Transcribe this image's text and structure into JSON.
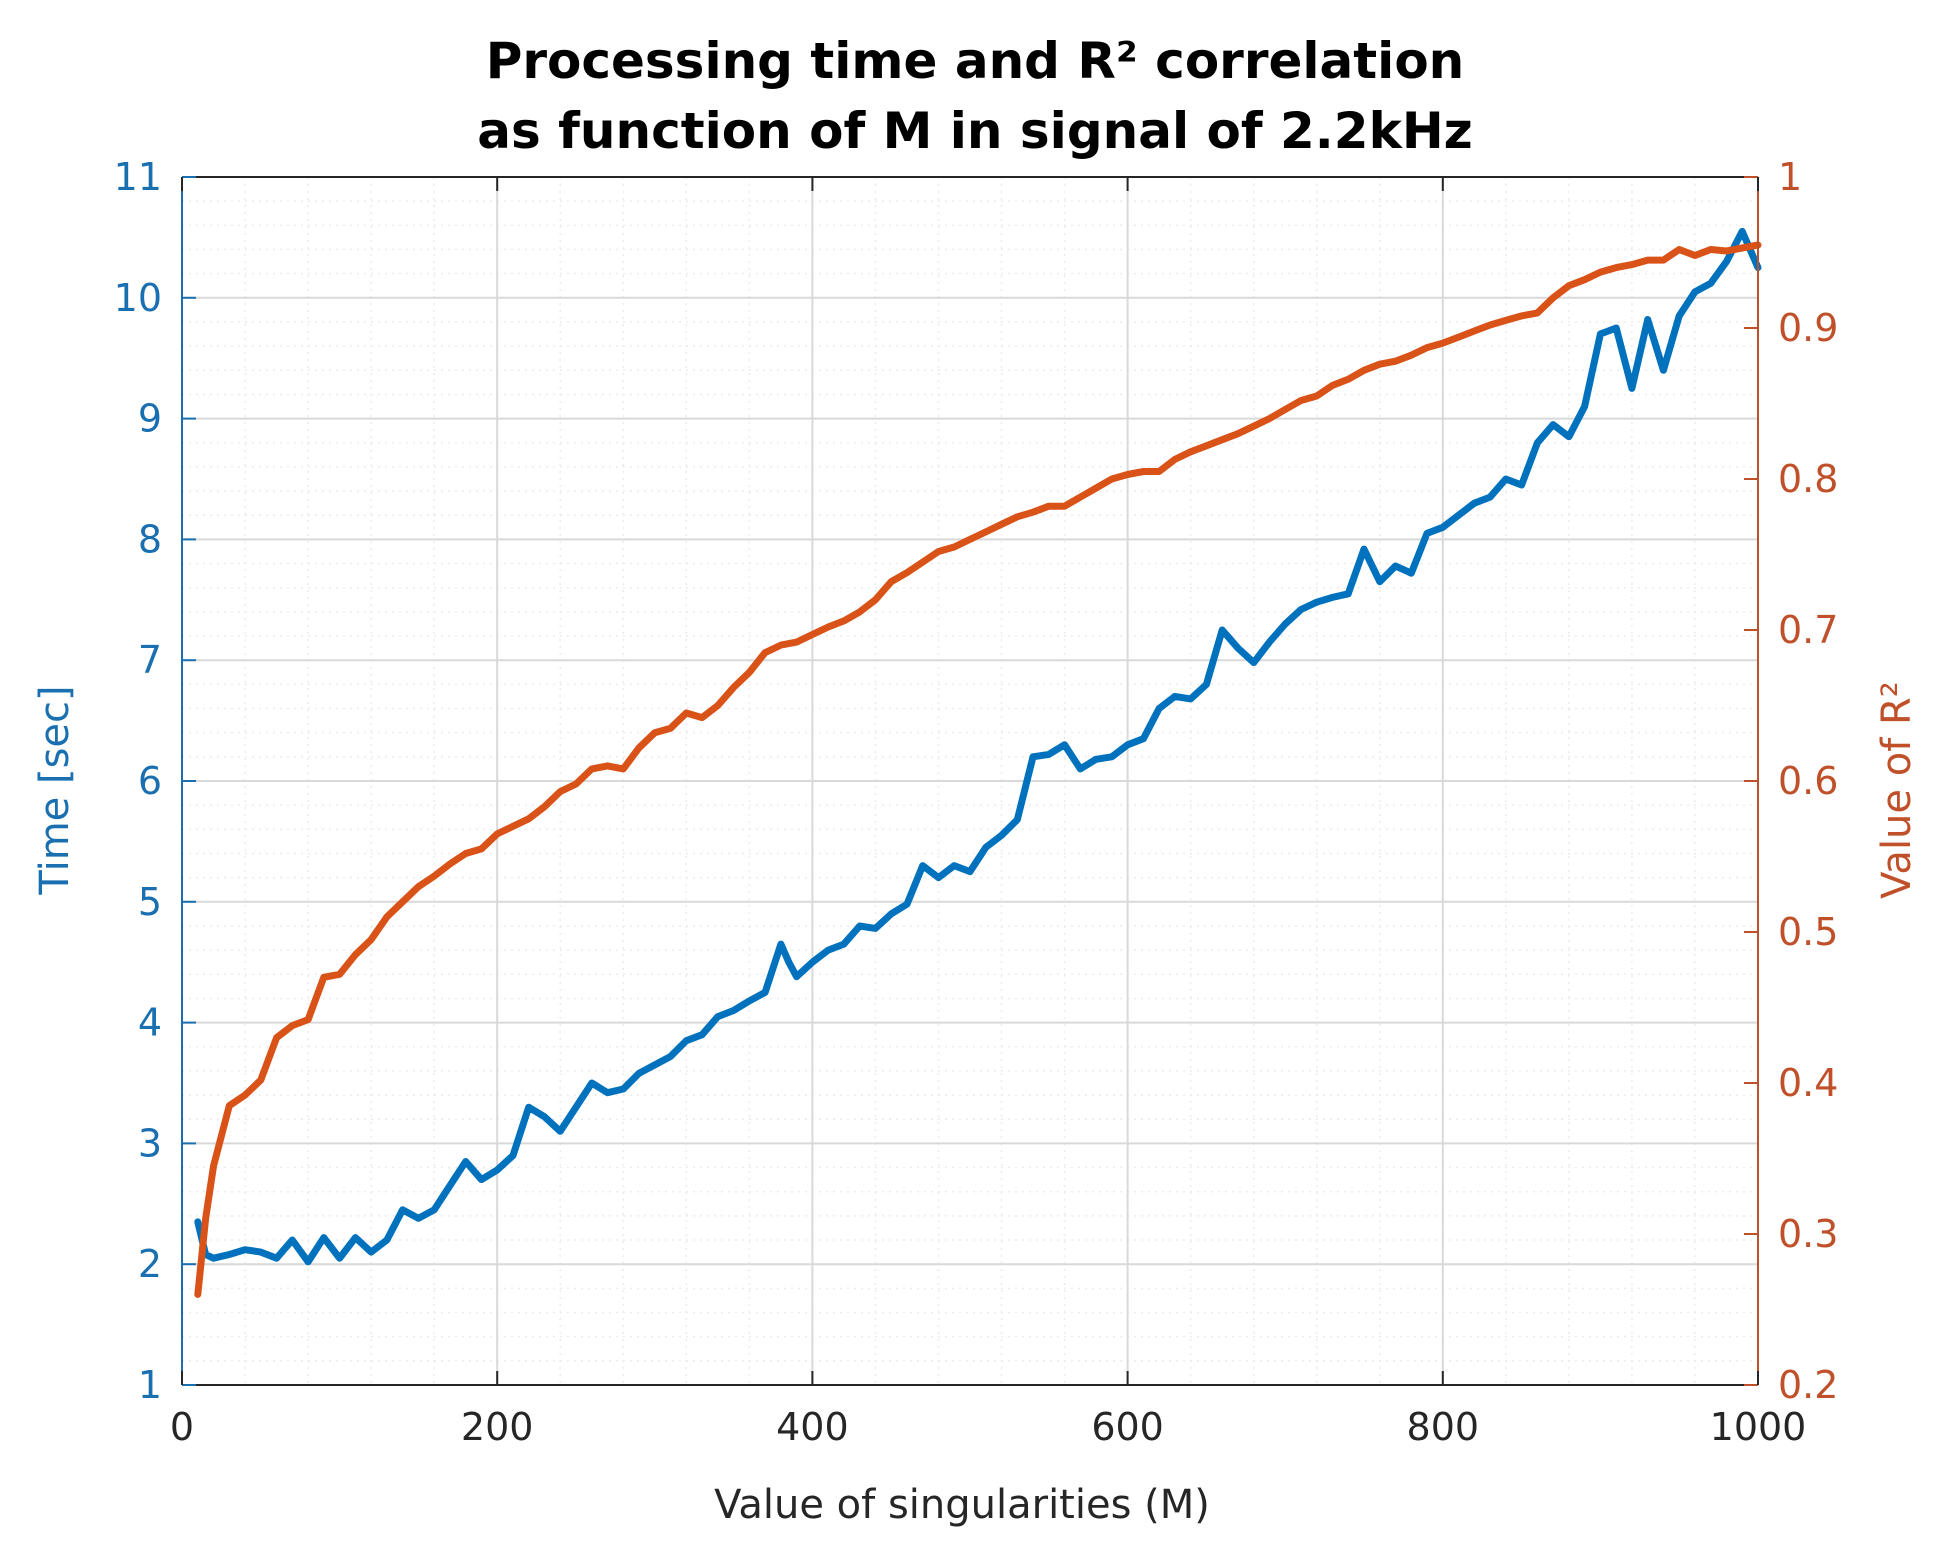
{
  "chart_data": {
    "type": "line",
    "title_line1": "Processing time and R² correlation",
    "title_line2": "as function of M in signal of 2.2kHz",
    "xlabel": "Value of singularities (M)",
    "ylabel_left": "Time [sec]",
    "ylabel_right": "Value of R²",
    "xlim": [
      0,
      1000
    ],
    "ylim_left": [
      1,
      11
    ],
    "ylim_right": [
      0.2,
      1
    ],
    "xticks": [
      0,
      200,
      400,
      600,
      800,
      1000
    ],
    "xtick_labels": [
      "0",
      "200",
      "400",
      "600",
      "800",
      "1000"
    ],
    "yticks_left": [
      1,
      2,
      3,
      4,
      5,
      6,
      7,
      8,
      9,
      10,
      11
    ],
    "ytick_labels_left": [
      "1",
      "2",
      "3",
      "4",
      "5",
      "6",
      "7",
      "8",
      "9",
      "10",
      "11"
    ],
    "yticks_right": [
      0.2,
      0.3,
      0.4,
      0.5,
      0.6,
      0.7,
      0.8,
      0.9,
      1
    ],
    "ytick_labels_right": [
      "0.2",
      "0.3",
      "0.4",
      "0.5",
      "0.6",
      "0.7",
      "0.8",
      "0.9",
      "1"
    ],
    "grid": true,
    "minor_grid": true,
    "colors": {
      "time": "#0072bd",
      "r2": "#d95319",
      "left_axis": "#1a6fb0",
      "right_axis": "#c0502a",
      "grid": "#d9d9d9",
      "minor_grid": "#ececec",
      "box": "#262626"
    },
    "series": [
      {
        "name": "Time",
        "axis": "left",
        "x": [
          10,
          15,
          20,
          30,
          40,
          50,
          60,
          70,
          80,
          90,
          100,
          110,
          120,
          130,
          140,
          150,
          160,
          170,
          180,
          190,
          200,
          210,
          220,
          230,
          240,
          250,
          260,
          270,
          280,
          290,
          300,
          310,
          320,
          330,
          340,
          350,
          360,
          370,
          380,
          385,
          390,
          400,
          410,
          420,
          430,
          440,
          450,
          460,
          470,
          480,
          490,
          500,
          510,
          520,
          530,
          540,
          550,
          560,
          570,
          580,
          590,
          600,
          610,
          620,
          630,
          640,
          650,
          660,
          670,
          680,
          690,
          700,
          710,
          720,
          730,
          740,
          750,
          760,
          770,
          780,
          790,
          800,
          810,
          820,
          830,
          840,
          850,
          860,
          870,
          880,
          890,
          900,
          910,
          920,
          930,
          940,
          950,
          960,
          970,
          980,
          990,
          1000
        ],
        "values": [
          2.35,
          2.08,
          2.05,
          2.08,
          2.12,
          2.1,
          2.05,
          2.2,
          2.02,
          2.22,
          2.05,
          2.22,
          2.1,
          2.2,
          2.45,
          2.38,
          2.45,
          2.65,
          2.85,
          2.7,
          2.78,
          2.9,
          3.3,
          3.22,
          3.1,
          3.3,
          3.5,
          3.42,
          3.45,
          3.58,
          3.65,
          3.72,
          3.85,
          3.9,
          4.05,
          4.1,
          4.18,
          4.25,
          4.65,
          4.5,
          4.38,
          4.5,
          4.6,
          4.65,
          4.8,
          4.78,
          4.9,
          4.98,
          5.3,
          5.2,
          5.3,
          5.25,
          5.45,
          5.55,
          5.68,
          6.2,
          6.22,
          6.3,
          6.1,
          6.18,
          6.2,
          6.3,
          6.35,
          6.6,
          6.7,
          6.68,
          6.8,
          7.25,
          7.1,
          6.98,
          7.15,
          7.3,
          7.42,
          7.48,
          7.52,
          7.55,
          7.92,
          7.65,
          7.78,
          7.72,
          8.05,
          8.1,
          8.2,
          8.3,
          8.35,
          8.5,
          8.45,
          8.8,
          8.95,
          8.85,
          9.1,
          9.7,
          9.75,
          9.25,
          9.82,
          9.4,
          9.85,
          10.05,
          10.12,
          10.3,
          10.55,
          10.25
        ]
      },
      {
        "name": "R²",
        "axis": "right",
        "x": [
          10,
          15,
          20,
          25,
          30,
          40,
          50,
          60,
          70,
          80,
          90,
          100,
          110,
          120,
          130,
          140,
          150,
          160,
          170,
          180,
          190,
          200,
          210,
          220,
          230,
          240,
          250,
          260,
          270,
          280,
          290,
          300,
          310,
          320,
          330,
          340,
          350,
          360,
          370,
          380,
          390,
          400,
          410,
          420,
          430,
          440,
          450,
          460,
          470,
          480,
          490,
          500,
          510,
          520,
          530,
          540,
          550,
          560,
          570,
          580,
          590,
          600,
          610,
          620,
          630,
          640,
          650,
          660,
          670,
          680,
          690,
          700,
          710,
          720,
          730,
          740,
          750,
          760,
          770,
          780,
          790,
          800,
          810,
          820,
          830,
          840,
          850,
          860,
          870,
          880,
          890,
          900,
          910,
          920,
          930,
          940,
          950,
          960,
          970,
          980,
          990,
          1000
        ],
        "values": [
          0.26,
          0.31,
          0.345,
          0.365,
          0.385,
          0.392,
          0.402,
          0.43,
          0.438,
          0.442,
          0.47,
          0.472,
          0.485,
          0.495,
          0.51,
          0.52,
          0.53,
          0.537,
          0.545,
          0.552,
          0.555,
          0.565,
          0.57,
          0.575,
          0.583,
          0.593,
          0.598,
          0.608,
          0.61,
          0.608,
          0.622,
          0.632,
          0.635,
          0.645,
          0.642,
          0.65,
          0.662,
          0.672,
          0.685,
          0.69,
          0.692,
          0.697,
          0.702,
          0.706,
          0.712,
          0.72,
          0.732,
          0.738,
          0.745,
          0.752,
          0.755,
          0.76,
          0.765,
          0.77,
          0.775,
          0.778,
          0.782,
          0.782,
          0.788,
          0.794,
          0.8,
          0.803,
          0.805,
          0.805,
          0.813,
          0.818,
          0.822,
          0.826,
          0.83,
          0.835,
          0.84,
          0.846,
          0.852,
          0.855,
          0.862,
          0.866,
          0.872,
          0.876,
          0.878,
          0.882,
          0.887,
          0.89,
          0.894,
          0.898,
          0.902,
          0.905,
          0.908,
          0.91,
          0.92,
          0.928,
          0.932,
          0.937,
          0.94,
          0.942,
          0.945,
          0.945,
          0.952,
          0.948,
          0.952,
          0.951,
          0.953,
          0.955
        ]
      }
    ]
  }
}
